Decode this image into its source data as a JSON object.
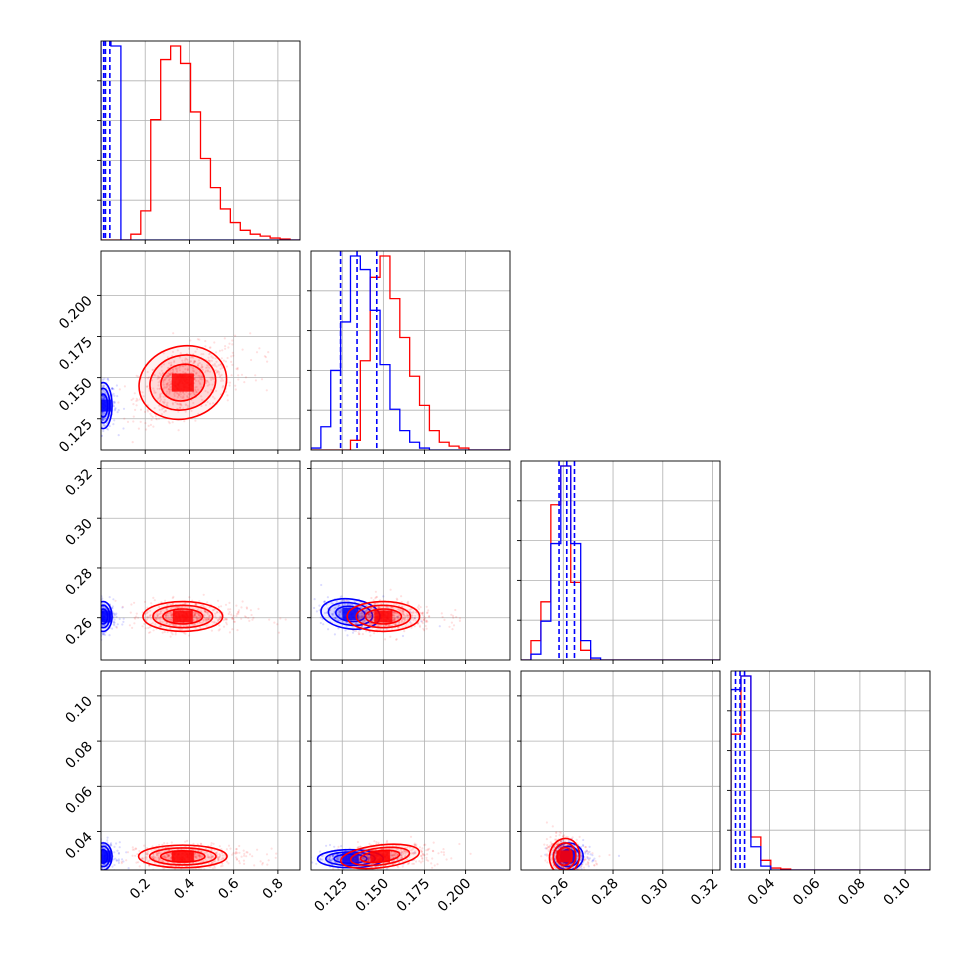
{
  "chart_data": {
    "type": "corner",
    "grid": true,
    "series": [
      {
        "name": "",
        "color": "#0000ff"
      },
      {
        "name": "",
        "color": "#ff0000"
      }
    ],
    "parameters": [
      {
        "range": [
          0.0,
          0.9
        ],
        "ticks": [
          "0.2",
          "0.4",
          "0.6",
          "0.8"
        ],
        "tick_values": [
          0.2,
          0.4,
          0.6,
          0.8
        ]
      },
      {
        "range": [
          0.106,
          0.227
        ],
        "ticks": [
          "0.125",
          "0.150",
          "0.175",
          "0.200"
        ],
        "tick_values": [
          0.125,
          0.15,
          0.175,
          0.2
        ]
      },
      {
        "range": [
          0.243,
          0.323
        ],
        "ticks": [
          "0.26",
          "0.28",
          "0.30",
          "0.32"
        ],
        "tick_values": [
          0.26,
          0.28,
          0.3,
          0.32
        ]
      },
      {
        "range": [
          0.023,
          0.111
        ],
        "ticks": [
          "0.04",
          "0.06",
          "0.08",
          "0.10"
        ],
        "tick_values": [
          0.04,
          0.06,
          0.08,
          0.1
        ]
      }
    ],
    "histograms": [
      {
        "param": 0,
        "bin_edges": [
          0.0,
          0.045,
          0.09,
          0.135,
          0.18,
          0.225,
          0.27,
          0.315,
          0.36,
          0.405,
          0.45,
          0.495,
          0.54,
          0.585,
          0.63,
          0.675,
          0.72,
          0.765,
          0.81,
          0.855,
          0.9
        ],
        "blue": [
          5.0,
          1.0,
          0.0,
          0,
          0,
          0,
          0,
          0,
          0,
          0,
          0,
          0,
          0,
          0,
          0,
          0,
          0,
          0,
          0,
          0
        ],
        "red": [
          0,
          0,
          0,
          0.03,
          0.15,
          0.62,
          0.93,
          1.0,
          0.91,
          0.66,
          0.42,
          0.27,
          0.16,
          0.09,
          0.05,
          0.03,
          0.02,
          0.01,
          0.005,
          0.0
        ],
        "blue_quantiles": [
          0.012,
          0.02,
          0.04
        ]
      },
      {
        "param": 1,
        "bin_edges": [
          0.106,
          0.112,
          0.118,
          0.124,
          0.13,
          0.136,
          0.142,
          0.148,
          0.154,
          0.16,
          0.166,
          0.172,
          0.178,
          0.184,
          0.19,
          0.196,
          0.202,
          0.208,
          0.214,
          0.22,
          0.227
        ],
        "blue": [
          0.01,
          0.12,
          0.41,
          0.66,
          1.0,
          0.93,
          0.72,
          0.44,
          0.21,
          0.1,
          0.04,
          0.01,
          0.0,
          0,
          0,
          0,
          0,
          0,
          0,
          0
        ],
        "red": [
          0,
          0,
          0,
          0,
          0.05,
          0.46,
          0.89,
          1.0,
          0.78,
          0.58,
          0.38,
          0.23,
          0.1,
          0.04,
          0.02,
          0.01,
          0.0,
          0,
          0,
          0
        ],
        "blue_quantiles": [
          0.124,
          0.134,
          0.146
        ]
      },
      {
        "param": 2,
        "bin_edges": [
          0.243,
          0.247,
          0.251,
          0.255,
          0.259,
          0.263,
          0.267,
          0.271,
          0.275,
          0.279,
          0.283,
          0.287,
          0.291,
          0.295,
          0.299,
          0.303,
          0.307,
          0.311,
          0.315,
          0.319,
          0.323
        ],
        "blue": [
          0.0,
          0.03,
          0.2,
          0.6,
          1.0,
          0.6,
          0.1,
          0.01,
          0.0,
          0,
          0,
          0,
          0,
          0,
          0,
          0,
          0,
          0,
          0,
          0
        ],
        "red": [
          0.0,
          0.1,
          0.3,
          0.8,
          1.0,
          0.4,
          0.05,
          0.0,
          0.0,
          0,
          0,
          0,
          0,
          0,
          0,
          0,
          0,
          0,
          0,
          0
        ],
        "blue_quantiles": [
          0.2583,
          0.2614,
          0.2645
        ]
      },
      {
        "param": 3,
        "bin_edges": [
          0.023,
          0.0274,
          0.0318,
          0.0362,
          0.0406,
          0.045,
          0.0494,
          0.0538,
          0.0582,
          0.0626,
          0.067,
          0.0714,
          0.0758,
          0.0802,
          0.0846,
          0.089,
          0.0934,
          0.0978,
          0.1022,
          0.1066,
          0.111
        ],
        "blue": [
          0.93,
          1.0,
          0.12,
          0.02,
          0.0,
          0,
          0,
          0,
          0,
          0,
          0,
          0,
          0,
          0,
          0,
          0,
          0,
          0,
          0,
          0
        ],
        "red": [
          0.7,
          1.0,
          0.17,
          0.05,
          0.01,
          0.005,
          0.0,
          0,
          0,
          0,
          0,
          0,
          0,
          0,
          0,
          0,
          0,
          0,
          0,
          0
        ],
        "blue_quantiles": [
          0.025,
          0.027,
          0.029
        ]
      }
    ],
    "contours": [
      {
        "pair": [
          1,
          0
        ],
        "blue": {
          "mean": [
            0.01,
            0.133
          ],
          "sd": [
            0.02,
            0.007
          ]
        },
        "red": {
          "mean": [
            0.37,
            0.147
          ],
          "sd": [
            0.1,
            0.011
          ],
          "rho": 0.45
        }
      },
      {
        "pair": [
          2,
          0
        ],
        "blue": {
          "mean": [
            0.01,
            0.2605
          ],
          "sd": [
            0.02,
            0.003
          ]
        },
        "red": {
          "mean": [
            0.37,
            0.2605
          ],
          "sd": [
            0.09,
            0.003
          ],
          "rho": 0
        }
      },
      {
        "pair": [
          2,
          1
        ],
        "blue": {
          "mean": [
            0.13,
            0.2615
          ],
          "sd": [
            0.009,
            0.003
          ],
          "rho": -0.2
        },
        "red": {
          "mean": [
            0.15,
            0.2605
          ],
          "sd": [
            0.011,
            0.003
          ],
          "rho": 0
        }
      },
      {
        "pair": [
          3,
          0
        ],
        "blue": {
          "mean": [
            0.01,
            0.029
          ],
          "sd": [
            0.02,
            0.003
          ]
        },
        "red": {
          "mean": [
            0.37,
            0.029
          ],
          "sd": [
            0.1,
            0.0025
          ],
          "rho": 0
        }
      },
      {
        "pair": [
          3,
          1
        ],
        "blue": {
          "mean": [
            0.13,
            0.028
          ],
          "sd": [
            0.01,
            0.002
          ],
          "rho": 0
        },
        "red": {
          "mean": [
            0.148,
            0.029
          ],
          "sd": [
            0.012,
            0.0025
          ],
          "rho": 0.2
        }
      },
      {
        "pair": [
          3,
          2
        ],
        "blue": {
          "mean": [
            0.262,
            0.029
          ],
          "sd": [
            0.003,
            0.003
          ]
        },
        "red": {
          "mean": [
            0.2605,
            0.029
          ],
          "sd": [
            0.003,
            0.004
          ],
          "rho": -0.3
        }
      }
    ]
  }
}
